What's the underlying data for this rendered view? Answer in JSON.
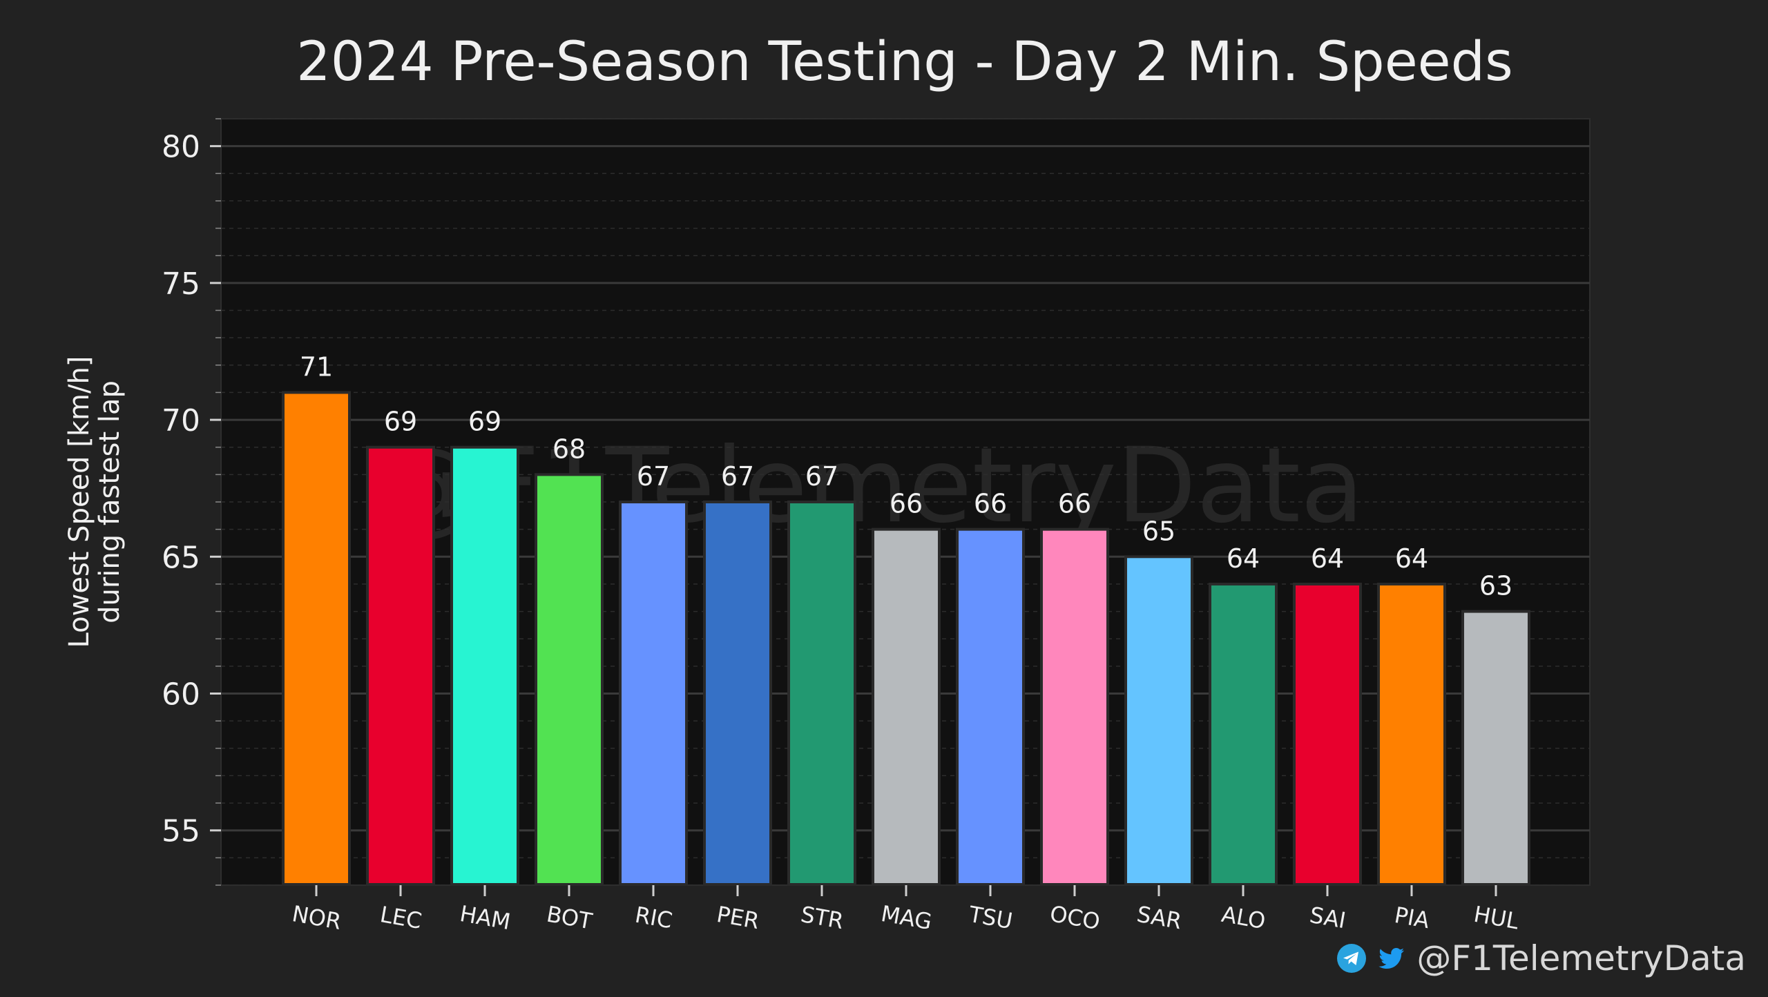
{
  "colors": {
    "background": "#222222",
    "plot_background": "#111111",
    "text": "#f0f0f0",
    "grid_major": "#3a3a3a",
    "grid_minor": "#2d2d2d",
    "watermark": "#262626",
    "telegram": "#2aa3df",
    "twitter": "#1d9bf0"
  },
  "credit": {
    "handle": "@F1TelemetryData",
    "icons": [
      "telegram-icon",
      "twitter-icon"
    ]
  },
  "watermark": "@F1TelemetryData",
  "chart_data": {
    "type": "bar",
    "title": "2024 Pre-Season Testing - Day 2 Min. Speeds",
    "xlabel": "",
    "ylabel": "Lowest Speed [km/h]\nduring fastest lap",
    "ylim": [
      53,
      81
    ],
    "yticks": [
      55,
      60,
      65,
      70,
      75,
      80
    ],
    "grid": true,
    "legend": "none",
    "categories": [
      "NOR",
      "LEC",
      "HAM",
      "BOT",
      "RIC",
      "PER",
      "STR",
      "MAG",
      "TSU",
      "OCO",
      "SAR",
      "ALO",
      "SAI",
      "PIA",
      "HUL"
    ],
    "values": [
      71,
      69,
      69,
      68,
      67,
      67,
      67,
      66,
      66,
      66,
      65,
      64,
      64,
      64,
      63
    ],
    "bar_colors": [
      "#ff8000",
      "#e8002d",
      "#27f4d2",
      "#52e252",
      "#6692ff",
      "#3671c6",
      "#229971",
      "#b6babd",
      "#6692ff",
      "#ff87bc",
      "#64c4ff",
      "#229971",
      "#e8002d",
      "#ff8000",
      "#b6babd"
    ],
    "data_labels": [
      "71",
      "69",
      "69",
      "68",
      "67",
      "67",
      "67",
      "66",
      "66",
      "66",
      "65",
      "64",
      "64",
      "64",
      "63"
    ]
  }
}
